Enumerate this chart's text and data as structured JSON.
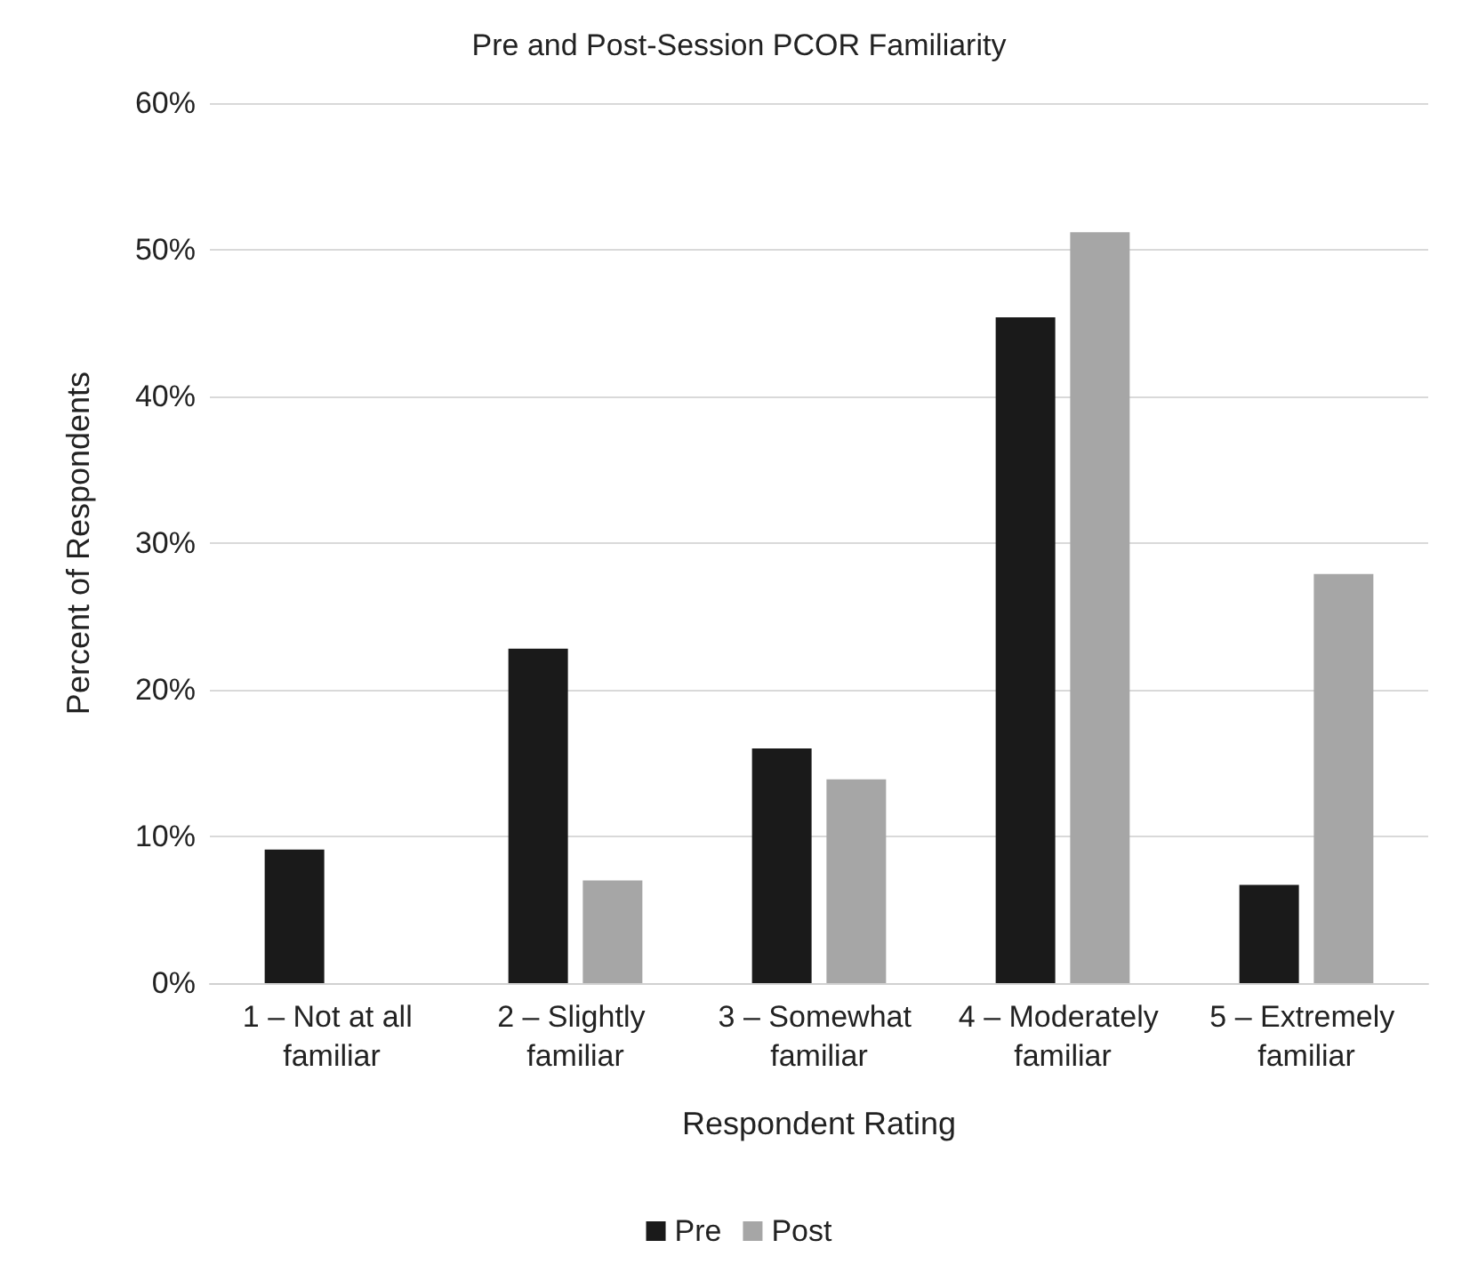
{
  "chart_data": {
    "type": "bar",
    "title": "Pre and Post-Session PCOR Familiarity",
    "xlabel": "Respondent Rating",
    "ylabel": "Percent of Respondents",
    "categories": [
      "1 – Not at all familiar",
      "2 – Slightly familiar",
      "3 – Somewhat familiar",
      "4 – Moderately familiar",
      "5 – Extremely familiar"
    ],
    "series": [
      {
        "name": "Pre",
        "color": "#1a1a1a",
        "values": [
          9.1,
          22.8,
          16.0,
          45.4,
          6.7
        ]
      },
      {
        "name": "Post",
        "color": "#a6a6a6",
        "values": [
          0,
          7.0,
          13.9,
          51.2,
          27.9
        ]
      }
    ],
    "ylim": [
      0,
      60
    ],
    "yticks": [
      {
        "value": 0,
        "label": "0%"
      },
      {
        "value": 10,
        "label": "10%"
      },
      {
        "value": 20,
        "label": "20%"
      },
      {
        "value": 30,
        "label": "30%"
      },
      {
        "value": 40,
        "label": "40%"
      },
      {
        "value": 50,
        "label": "50%"
      },
      {
        "value": 60,
        "label": "60%"
      }
    ],
    "grid": "y",
    "legend": "bottom",
    "marker": "square"
  }
}
